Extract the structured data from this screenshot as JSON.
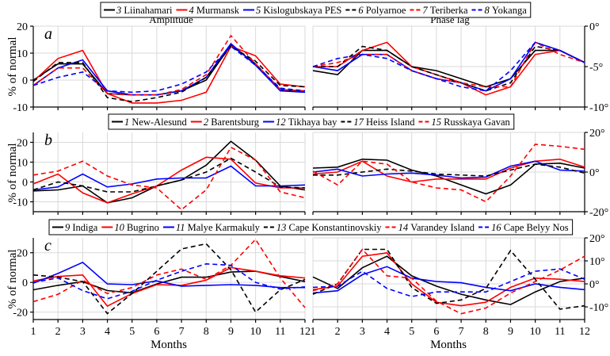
{
  "figure": {
    "y_label": "% of normal",
    "x_label": "Months",
    "subtitle_left": "Amplitude",
    "subtitle_right": "Phase lag"
  },
  "colors": {
    "black": "#000000",
    "red": "#ff0000",
    "blue": "#0000ff"
  },
  "chart_data": [
    {
      "type": "line",
      "panel": "a",
      "title": "Amplitude",
      "xlabel": "",
      "ylabel": "% of normal",
      "x": [
        1,
        2,
        3,
        4,
        5,
        6,
        7,
        8,
        9,
        10,
        11,
        12
      ],
      "ylim": [
        -10,
        20
      ],
      "yticks": [
        -10,
        0,
        10,
        20
      ],
      "ytick_labels": [
        "-10",
        "0",
        "10",
        "20"
      ],
      "grid": true,
      "legend": "top",
      "series": [
        {
          "num": "3",
          "name": "Liinahamari",
          "color": "black",
          "dash": false,
          "values": [
            0,
            6,
            6,
            -5,
            -5.5,
            -5.5,
            -4,
            0,
            13,
            6,
            -3.5,
            -4.5
          ]
        },
        {
          "num": "4",
          "name": "Murmansk",
          "color": "red",
          "dash": false,
          "values": [
            -0.5,
            8,
            11,
            -5,
            -8.5,
            -8.5,
            -7.5,
            -4.5,
            12.5,
            9,
            -1.5,
            -2.5
          ]
        },
        {
          "num": "5",
          "name": "Kislogubskaya PES",
          "color": "blue",
          "dash": false,
          "values": [
            -2,
            4.5,
            7.5,
            -4,
            -5.5,
            -5.5,
            -4,
            1,
            13.5,
            5.5,
            -4,
            -4.5
          ]
        },
        {
          "num": "6",
          "name": "Polyarnoe",
          "color": "black",
          "dash": true,
          "values": [
            -0.5,
            6.5,
            6.5,
            -6.5,
            -8,
            -6.5,
            -4.5,
            1,
            12.5,
            7,
            -2,
            -2.5
          ]
        },
        {
          "num": "7",
          "name": "Teriberka",
          "color": "red",
          "dash": true,
          "values": [
            -2,
            4.5,
            4.5,
            -5,
            -5.5,
            -5.5,
            -3.5,
            2,
            16.5,
            6,
            -3.5,
            -4
          ]
        },
        {
          "num": "8",
          "name": "Yokanga",
          "color": "blue",
          "dash": true,
          "values": [
            -2,
            1,
            3,
            -4,
            -4.5,
            -4,
            -1.5,
            3,
            12.5,
            5.5,
            -3,
            -4
          ]
        }
      ]
    },
    {
      "type": "line",
      "panel": "a",
      "title": "Phase lag",
      "xlabel": "",
      "ylabel": "",
      "x": [
        1,
        2,
        3,
        4,
        5,
        6,
        7,
        8,
        9,
        10,
        11,
        12
      ],
      "ylim": [
        -10,
        0
      ],
      "yticks": [
        -10,
        -5,
        0
      ],
      "ytick_labels": [
        "-10°",
        "-5°",
        "0°"
      ],
      "grid": true,
      "series": [
        {
          "num": "3",
          "name": "Liinahamari",
          "color": "black",
          "dash": false,
          "values": [
            -5.5,
            -6,
            -3,
            -3,
            -5,
            -5.5,
            -6.5,
            -7.5,
            -6.5,
            -3,
            -3,
            -4.5
          ]
        },
        {
          "num": "4",
          "name": "Murmansk",
          "color": "red",
          "dash": false,
          "values": [
            -5,
            -5,
            -3,
            -2,
            -5,
            -6,
            -7,
            -8.5,
            -7.5,
            -3.5,
            -3,
            -4.5
          ]
        },
        {
          "num": "5",
          "name": "Kislogubskaya PES",
          "color": "blue",
          "dash": false,
          "values": [
            -5,
            -5.5,
            -3.5,
            -3.5,
            -5.5,
            -6.5,
            -7,
            -8,
            -6.5,
            -2,
            -3,
            -4.5
          ]
        },
        {
          "num": "6",
          "name": "Polyarnoe",
          "color": "black",
          "dash": true,
          "values": [
            -5,
            -5,
            -2.5,
            -3,
            -5,
            -6,
            -7,
            -8,
            -7,
            -2.5,
            -3,
            -4.5
          ]
        },
        {
          "num": "7",
          "name": "Teriberka",
          "color": "red",
          "dash": true,
          "values": [
            -5,
            -4.5,
            -3.5,
            -3.5,
            -5.5,
            -6.5,
            -7,
            -7.5,
            -7.5,
            -2,
            -3.5,
            -4.5
          ]
        },
        {
          "num": "8",
          "name": "Yokanga",
          "color": "blue",
          "dash": true,
          "values": [
            -5,
            -4,
            -3.5,
            -4,
            -5.5,
            -6.5,
            -7.5,
            -8,
            -5.5,
            -2,
            -3,
            -4.5
          ]
        }
      ]
    },
    {
      "type": "line",
      "panel": "b",
      "title": "",
      "xlabel": "",
      "ylabel": "% of normal",
      "x": [
        1,
        2,
        3,
        4,
        5,
        6,
        7,
        8,
        9,
        10,
        11,
        12
      ],
      "ylim": [
        -15,
        25
      ],
      "yticks": [
        -10,
        0,
        10,
        20
      ],
      "ytick_labels": [
        "-10",
        "0",
        "10",
        "20"
      ],
      "grid": true,
      "legend": "top",
      "series": [
        {
          "num": "1",
          "name": "New-Alesund",
          "color": "black",
          "dash": false,
          "values": [
            -4.5,
            -4,
            -2,
            -10.5,
            -8,
            -2,
            1,
            8.5,
            20.5,
            11,
            -2,
            -4
          ]
        },
        {
          "num": "2",
          "name": "Barentsburg",
          "color": "red",
          "dash": false,
          "values": [
            -1,
            4,
            -5.5,
            -10.5,
            -6,
            -2,
            6,
            12.5,
            11.5,
            -0.5,
            -3,
            -3
          ]
        },
        {
          "num": "12",
          "name": "Tikhaya bay",
          "color": "blue",
          "dash": false,
          "values": [
            -4,
            -2.5,
            4,
            -2.5,
            -1,
            1.5,
            2,
            2,
            8,
            -2,
            -2,
            -1.5
          ]
        },
        {
          "num": "17",
          "name": "Heiss Island",
          "color": "black",
          "dash": true,
          "values": [
            -4,
            0,
            -2,
            -5,
            -5,
            -2,
            1,
            5,
            12,
            5,
            -2.5,
            -3
          ]
        },
        {
          "num": "15",
          "name": "Russkaya Gavan",
          "color": "red",
          "dash": true,
          "values": [
            3.5,
            5.5,
            10.5,
            3,
            -1.5,
            -3,
            -14,
            -4,
            17.5,
            11,
            -5,
            -8
          ]
        }
      ]
    },
    {
      "type": "line",
      "panel": "b",
      "title": "",
      "xlabel": "",
      "ylabel": "",
      "x": [
        1,
        2,
        3,
        4,
        5,
        6,
        7,
        8,
        9,
        10,
        11,
        12
      ],
      "ylim": [
        -20,
        20
      ],
      "yticks": [
        -20,
        0,
        20
      ],
      "ytick_labels": [
        "-20°",
        "0°",
        "20°"
      ],
      "grid": true,
      "series": [
        {
          "num": "1",
          "name": "New-Alesund",
          "color": "black",
          "dash": false,
          "values": [
            2,
            2.5,
            6.5,
            6,
            1,
            -2,
            -6.5,
            -11,
            -6.5,
            4,
            4.5,
            2
          ]
        },
        {
          "num": "2",
          "name": "Barentsburg",
          "color": "red",
          "dash": false,
          "values": [
            -1,
            0,
            5.5,
            -2,
            -5,
            -3.5,
            -3.5,
            -3.5,
            2,
            5.5,
            6.5,
            2.5
          ]
        },
        {
          "num": "12",
          "name": "Tikhaya bay",
          "color": "blue",
          "dash": false,
          "values": [
            0,
            1.5,
            -2,
            -1,
            -0.5,
            -1.5,
            -3,
            -2.5,
            3,
            5.5,
            1,
            0.5
          ]
        },
        {
          "num": "17",
          "name": "Heiss Island",
          "color": "black",
          "dash": true,
          "values": [
            -1.5,
            -1.5,
            0,
            1.5,
            0.5,
            -1,
            -1.5,
            -2,
            1,
            4,
            2.5,
            -0.5
          ]
        },
        {
          "num": "15",
          "name": "Russkaya Gavan",
          "color": "red",
          "dash": true,
          "values": [
            0.5,
            -6.5,
            5.5,
            4,
            -5,
            -8,
            -9,
            -15,
            -2,
            14,
            13,
            11.5
          ]
        }
      ]
    },
    {
      "type": "line",
      "panel": "c",
      "title": "",
      "xlabel": "Months",
      "ylabel": "% of normal",
      "x": [
        1,
        2,
        3,
        4,
        5,
        6,
        7,
        8,
        9,
        10,
        11,
        12
      ],
      "xtick_labels": [
        "1",
        "2",
        "3",
        "4",
        "5",
        "6",
        "7",
        "8",
        "9",
        "10",
        "11",
        "12"
      ],
      "ylim": [
        -25,
        30
      ],
      "yticks": [
        -20,
        0,
        20
      ],
      "ytick_labels": [
        "-20",
        "0",
        "20"
      ],
      "grid": true,
      "legend": "top",
      "series": [
        {
          "num": "9",
          "name": "Indiga",
          "color": "black",
          "dash": false,
          "values": [
            -5,
            -2,
            0.5,
            -5.5,
            -7,
            -1,
            3.5,
            3.5,
            7,
            7.5,
            4,
            0.5
          ]
        },
        {
          "num": "10",
          "name": "Bugrino",
          "color": "red",
          "dash": false,
          "values": [
            1,
            4,
            5,
            -16,
            -7.5,
            -1.5,
            -2,
            1.5,
            10,
            7.5,
            4.5,
            3
          ]
        },
        {
          "num": "11",
          "name": "Malye Karmakuly",
          "color": "blue",
          "dash": false,
          "values": [
            -0.5,
            6,
            13.5,
            -1,
            -1.5,
            1,
            -2.5,
            -2,
            -1.5,
            -2,
            -3.5,
            -3.5
          ]
        },
        {
          "num": "13",
          "name": "Cape Konstantinovskiy",
          "color": "black",
          "dash": true,
          "values": [
            5,
            3.5,
            0.5,
            -21,
            -7.5,
            7.5,
            22.5,
            26,
            8.5,
            -20,
            -5,
            2
          ]
        },
        {
          "num": "14",
          "name": "Varandey Island",
          "color": "red",
          "dash": true,
          "values": [
            -13,
            -8,
            1.5,
            -7.5,
            -3.5,
            5,
            9,
            2,
            11.5,
            29,
            3,
            -17
          ]
        },
        {
          "num": "16",
          "name": "Cape Belyy Nos",
          "color": "blue",
          "dash": true,
          "values": [
            0,
            3,
            -5.5,
            -11,
            -6,
            1.5,
            7.5,
            12.5,
            11.5,
            0,
            -4.5,
            -3
          ]
        }
      ]
    },
    {
      "type": "line",
      "panel": "c",
      "title": "",
      "xlabel": "Months",
      "ylabel": "",
      "x": [
        1,
        2,
        3,
        4,
        5,
        6,
        7,
        8,
        9,
        10,
        11,
        12
      ],
      "xtick_labels": [
        "1",
        "2",
        "3",
        "4",
        "5",
        "6",
        "7",
        "8",
        "9",
        "10",
        "11",
        "12"
      ],
      "ylim": [
        -15.5,
        20
      ],
      "yticks": [
        -10,
        0,
        10,
        20
      ],
      "ytick_labels": [
        "-10°",
        "0°",
        "10°",
        "20°"
      ],
      "grid": true,
      "series": [
        {
          "num": "9",
          "name": "Indiga",
          "color": "black",
          "dash": false,
          "values": [
            3,
            -2,
            7,
            12,
            3.5,
            -1,
            -4.5,
            -7,
            -9,
            -3.5,
            1,
            2.5
          ]
        },
        {
          "num": "10",
          "name": "Bugrino",
          "color": "red",
          "dash": false,
          "values": [
            -2.5,
            -1,
            12,
            13.5,
            0,
            -8,
            -9.5,
            -8,
            -1.5,
            2.5,
            2,
            1
          ]
        },
        {
          "num": "11",
          "name": "Malye Karmakuly",
          "color": "blue",
          "dash": false,
          "values": [
            -4,
            -3,
            4,
            7.5,
            2.5,
            1,
            0.5,
            -1.5,
            -3,
            0,
            -1.5,
            -2.5
          ]
        },
        {
          "num": "13",
          "name": "Cape Konstantinovskiy",
          "color": "black",
          "dash": true,
          "values": [
            -4.5,
            0,
            15,
            15,
            -1.5,
            -8.5,
            -7,
            -2,
            14.5,
            2,
            -11,
            -9.5
          ]
        },
        {
          "num": "14",
          "name": "Varandey Island",
          "color": "red",
          "dash": true,
          "values": [
            -3,
            0,
            15,
            3.5,
            2.5,
            -7.5,
            -13,
            -10.5,
            -4,
            1,
            6,
            12
          ]
        },
        {
          "num": "16",
          "name": "Cape Belyy Nos",
          "color": "blue",
          "dash": true,
          "values": [
            -1.5,
            -1,
            5.5,
            -2,
            -5.5,
            -3.5,
            -3.5,
            -3.5,
            1,
            5.5,
            6.5,
            2
          ]
        }
      ]
    }
  ]
}
